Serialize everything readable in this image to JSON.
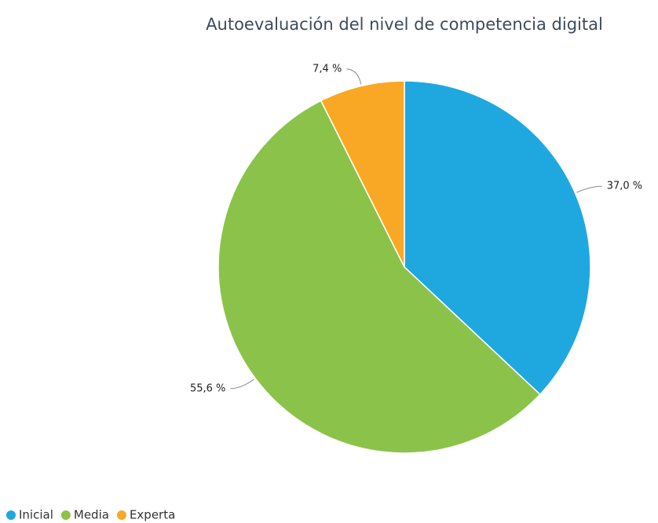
{
  "chart_data": {
    "type": "pie",
    "title": "Autoevaluación del nivel de competencia digital",
    "categories": [
      "Inicial",
      "Media",
      "Experta"
    ],
    "values": [
      37.0,
      55.6,
      7.4
    ],
    "value_labels": [
      "37,0 %",
      "55,6 %",
      "7,4 %"
    ],
    "colors": [
      "#1fa8e0",
      "#8bc34a",
      "#f9a825"
    ],
    "legend": "bottom-left"
  }
}
